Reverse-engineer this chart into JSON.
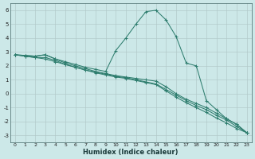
{
  "xlabel": "Humidex (Indice chaleur)",
  "ylabel": "",
  "bg_color": "#cce8e8",
  "grid_color": "#b0c8c8",
  "line_color": "#2e7d6e",
  "xlim": [
    -0.5,
    23.5
  ],
  "ylim": [
    -3.5,
    6.5
  ],
  "yticks": [
    -3,
    -2,
    -1,
    0,
    1,
    2,
    3,
    4,
    5,
    6
  ],
  "xticks": [
    0,
    1,
    2,
    3,
    4,
    5,
    6,
    7,
    8,
    9,
    10,
    11,
    12,
    13,
    14,
    15,
    16,
    17,
    18,
    19,
    20,
    21,
    22,
    23
  ],
  "series": [
    {
      "x": [
        0,
        1,
        2,
        3,
        4,
        5,
        6,
        7,
        8,
        9,
        10,
        11,
        12,
        13,
        14,
        15,
        16,
        17,
        18,
        19,
        20,
        21,
        22,
        23
      ],
      "y": [
        2.8,
        2.75,
        2.7,
        2.8,
        2.5,
        2.3,
        2.1,
        1.9,
        1.75,
        1.6,
        3.1,
        4.0,
        5.0,
        5.9,
        6.0,
        5.3,
        4.1,
        2.2,
        2.0,
        -0.5,
        -1.15,
        -1.8,
        -2.2,
        -2.8
      ]
    },
    {
      "x": [
        0,
        1,
        2,
        3,
        4,
        5,
        6,
        7,
        8,
        9,
        10,
        11,
        12,
        13,
        14,
        15,
        16,
        17,
        18,
        19,
        20,
        21,
        22,
        23
      ],
      "y": [
        2.8,
        2.75,
        2.7,
        2.8,
        2.5,
        2.2,
        2.0,
        1.8,
        1.6,
        1.45,
        1.3,
        1.2,
        1.1,
        1.0,
        0.9,
        0.5,
        0.0,
        -0.4,
        -0.7,
        -1.0,
        -1.4,
        -1.8,
        -2.2,
        -2.8
      ]
    },
    {
      "x": [
        0,
        1,
        2,
        3,
        4,
        5,
        6,
        7,
        8,
        9,
        10,
        11,
        12,
        13,
        14,
        15,
        16,
        17,
        18,
        19,
        20,
        21,
        22,
        23
      ],
      "y": [
        2.8,
        2.7,
        2.6,
        2.6,
        2.4,
        2.1,
        1.9,
        1.7,
        1.55,
        1.4,
        1.25,
        1.15,
        1.0,
        0.85,
        0.7,
        0.3,
        -0.1,
        -0.5,
        -0.85,
        -1.15,
        -1.55,
        -1.9,
        -2.35,
        -2.8
      ]
    },
    {
      "x": [
        0,
        1,
        2,
        3,
        4,
        5,
        6,
        7,
        8,
        9,
        10,
        11,
        12,
        13,
        14,
        15,
        16,
        17,
        18,
        19,
        20,
        21,
        22,
        23
      ],
      "y": [
        2.8,
        2.7,
        2.6,
        2.5,
        2.3,
        2.1,
        1.9,
        1.7,
        1.5,
        1.35,
        1.2,
        1.1,
        0.95,
        0.8,
        0.65,
        0.2,
        -0.25,
        -0.65,
        -1.0,
        -1.35,
        -1.75,
        -2.1,
        -2.5,
        -2.8
      ]
    }
  ]
}
